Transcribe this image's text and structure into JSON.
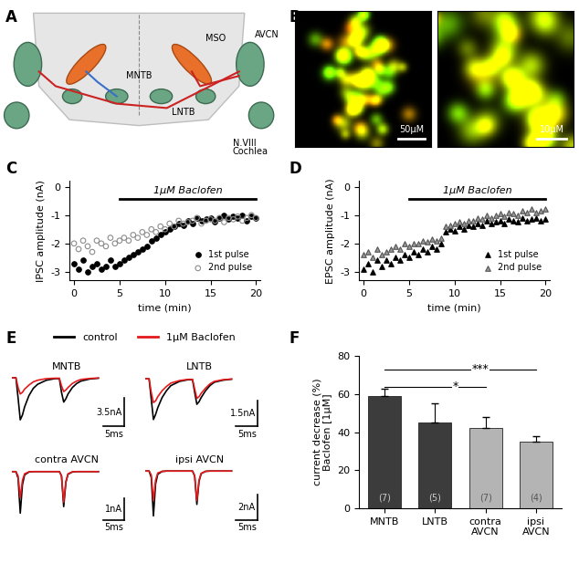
{
  "diagram": {
    "panel_label": "A",
    "labels": [
      "MNTB",
      "MSO",
      "LNTB",
      "AVCN",
      "N.VIII",
      "Cochlea"
    ]
  },
  "images": {
    "panel_label": "B",
    "scale_bars": [
      {
        "value": 50,
        "label": "50µM"
      },
      {
        "value": 10,
        "label": "10µM"
      }
    ]
  },
  "chart_data": [
    {
      "panel_label": "C",
      "type": "scatter",
      "ylabel": "IPSC amplitude (nA)",
      "xlabel": "time (min)",
      "xlim": [
        -0.5,
        20.5
      ],
      "xticks": [
        0,
        5,
        10,
        15,
        20
      ],
      "ylim": [
        -3.3,
        0.2
      ],
      "yticks": [
        -3,
        -2,
        -1,
        0
      ],
      "legend": "lower right",
      "drug_bar": {
        "label": "1µM Baclofen",
        "start": 5,
        "end": 20
      },
      "x": [
        0,
        0.5,
        1,
        1.5,
        2,
        2.5,
        3,
        3.5,
        4,
        4.5,
        5,
        5.5,
        6,
        6.5,
        7,
        7.5,
        8,
        8.5,
        9,
        9.5,
        10,
        10.5,
        11,
        11.5,
        12,
        12.5,
        13,
        13.5,
        14,
        14.5,
        15,
        15.5,
        16,
        16.5,
        17,
        17.5,
        18,
        18.5,
        19,
        19.5,
        20
      ],
      "series": [
        {
          "name": "1st pulse",
          "color": "#000000",
          "marker": "circle",
          "values": [
            -2.7,
            -2.9,
            -2.6,
            -3.0,
            -2.8,
            -2.7,
            -2.9,
            -2.8,
            -2.6,
            -2.8,
            -2.7,
            -2.6,
            -2.5,
            -2.4,
            -2.3,
            -2.2,
            -2.1,
            -1.9,
            -1.8,
            -1.7,
            -1.6,
            -1.5,
            -1.4,
            -1.3,
            -1.35,
            -1.2,
            -1.3,
            -1.1,
            -1.2,
            -1.15,
            -1.1,
            -1.25,
            -1.1,
            -1.0,
            -1.15,
            -1.05,
            -1.1,
            -1.0,
            -1.2,
            -1.05,
            -1.1
          ]
        },
        {
          "name": "2nd pulse",
          "color": "#8c8c8c",
          "marker": "open circle",
          "values": [
            -2.0,
            -2.2,
            -1.9,
            -2.1,
            -2.3,
            -1.9,
            -2.0,
            -2.1,
            -1.8,
            -2.0,
            -1.9,
            -1.8,
            -1.9,
            -1.7,
            -1.8,
            -1.6,
            -1.7,
            -1.5,
            -1.6,
            -1.4,
            -1.5,
            -1.3,
            -1.4,
            -1.2,
            -1.3,
            -1.25,
            -1.2,
            -1.1,
            -1.3,
            -1.2,
            -1.15,
            -1.2,
            -1.1,
            -1.25,
            -1.1,
            -1.15,
            -1.05,
            -1.2,
            -1.1,
            -1.0,
            -1.1
          ]
        }
      ]
    },
    {
      "panel_label": "D",
      "type": "scatter",
      "ylabel": "EPSC amplitude (nA)",
      "xlabel": "time (min)",
      "xlim": [
        -0.5,
        20.5
      ],
      "xticks": [
        0,
        5,
        10,
        15,
        20
      ],
      "ylim": [
        -3.3,
        0.2
      ],
      "yticks": [
        -3,
        -2,
        -1,
        0
      ],
      "legend": "lower right",
      "drug_bar": {
        "label": "1µM Baclofen",
        "start": 5,
        "end": 20
      },
      "x": [
        0,
        0.5,
        1,
        1.5,
        2,
        2.5,
        3,
        3.5,
        4,
        4.5,
        5,
        5.5,
        6,
        6.5,
        7,
        7.5,
        8,
        8.5,
        9,
        9.5,
        10,
        10.5,
        11,
        11.5,
        12,
        12.5,
        13,
        13.5,
        14,
        14.5,
        15,
        15.5,
        16,
        16.5,
        17,
        17.5,
        18,
        18.5,
        19,
        19.5,
        20
      ],
      "series": [
        {
          "name": "1st pulse",
          "color": "#000000",
          "marker": "triangle",
          "values": [
            -2.9,
            -2.7,
            -3.0,
            -2.6,
            -2.8,
            -2.6,
            -2.7,
            -2.5,
            -2.6,
            -2.4,
            -2.5,
            -2.3,
            -2.4,
            -2.2,
            -2.3,
            -2.1,
            -2.2,
            -2.0,
            -1.6,
            -1.5,
            -1.55,
            -1.4,
            -1.5,
            -1.35,
            -1.4,
            -1.3,
            -1.35,
            -1.2,
            -1.3,
            -1.25,
            -1.2,
            -1.3,
            -1.15,
            -1.2,
            -1.25,
            -1.1,
            -1.2,
            -1.15,
            -1.1,
            -1.2,
            -1.15
          ]
        },
        {
          "name": "2nd pulse",
          "color": "#9a9a9a",
          "marker": "triangle",
          "values": [
            -2.4,
            -2.3,
            -2.5,
            -2.2,
            -2.4,
            -2.3,
            -2.2,
            -2.1,
            -2.2,
            -2.0,
            -2.1,
            -2.0,
            -2.0,
            -1.9,
            -1.95,
            -1.85,
            -1.9,
            -1.8,
            -1.4,
            -1.35,
            -1.3,
            -1.25,
            -1.3,
            -1.2,
            -1.2,
            -1.1,
            -1.15,
            -1.0,
            -1.1,
            -1.0,
            -0.95,
            -1.05,
            -0.9,
            -0.95,
            -1.0,
            -0.85,
            -0.9,
            -0.8,
            -0.9,
            -0.85,
            -0.8
          ]
        }
      ]
    },
    {
      "panel_label": "E",
      "type": "line",
      "legend": "upper center",
      "tick_labels": false,
      "x": [
        0,
        1,
        1.5,
        2,
        2.5,
        3,
        4,
        5,
        6,
        8,
        10,
        11,
        11.5,
        12,
        12.5,
        13,
        14,
        15,
        16,
        18,
        20
      ],
      "xlim": [
        0,
        28
      ],
      "series": [
        {
          "name": "control",
          "color": "#000000"
        },
        {
          "name": "1µM Baclofen",
          "color": "#e41a1c"
        }
      ],
      "traces": [
        {
          "title": "MNTB",
          "ylim": [
            -6,
            0.5
          ],
          "scale_bar": {
            "y": {
              "value": 3.5,
              "label": "3.5nA"
            },
            "x": {
              "value": 5,
              "label": "5ms"
            }
          },
          "values": [
            [
              0,
              0,
              -2.5,
              -5.2,
              -4.6,
              -3.6,
              -2.2,
              -1.3,
              -0.8,
              -0.3,
              -0.1,
              -0.1,
              -1.8,
              -3.0,
              -2.6,
              -2.0,
              -1.2,
              -0.7,
              -0.4,
              -0.15,
              -0.05
            ],
            [
              0,
              0,
              -1.2,
              -2.0,
              -1.8,
              -1.4,
              -0.9,
              -0.5,
              -0.3,
              -0.1,
              -0.05,
              -0.05,
              -1.0,
              -1.7,
              -1.5,
              -1.2,
              -0.7,
              -0.4,
              -0.2,
              -0.08,
              -0.02
            ]
          ]
        },
        {
          "title": "LNTB",
          "ylim": [
            -2.8,
            0.3
          ],
          "scale_bar": {
            "y": {
              "value": 1.5,
              "label": "1.5nA"
            },
            "x": {
              "value": 5,
              "label": "5ms"
            }
          },
          "values": [
            [
              0,
              0,
              -1.2,
              -2.4,
              -2.1,
              -1.7,
              -1.1,
              -0.7,
              -0.4,
              -0.15,
              -0.05,
              -0.05,
              -0.8,
              -1.5,
              -1.35,
              -1.1,
              -0.7,
              -0.4,
              -0.2,
              -0.08,
              -0.02
            ],
            [
              0,
              0,
              -0.8,
              -1.4,
              -1.3,
              -1.05,
              -0.7,
              -0.45,
              -0.25,
              -0.1,
              -0.03,
              -0.03,
              -0.6,
              -1.15,
              -1.05,
              -0.85,
              -0.55,
              -0.3,
              -0.15,
              -0.05,
              -0.01
            ]
          ]
        },
        {
          "title": "contra AVCN",
          "ylim": [
            -2.2,
            0.2
          ],
          "scale_bar": {
            "y": {
              "value": 1,
              "label": "1nA"
            },
            "x": {
              "value": 5,
              "label": "5ms"
            }
          },
          "values": [
            [
              0,
              0,
              -0.3,
              -1.9,
              -0.6,
              -0.15,
              -0.02,
              0,
              0,
              0,
              0,
              0,
              -0.2,
              -1.6,
              -0.5,
              -0.12,
              -0.02,
              0,
              0,
              0,
              0
            ],
            [
              0,
              0,
              -0.2,
              -1.2,
              -0.4,
              -0.1,
              -0.01,
              0,
              0,
              0,
              0,
              0,
              -0.2,
              -1.4,
              -0.45,
              -0.1,
              -0.01,
              0,
              0,
              0,
              0
            ]
          ]
        },
        {
          "title": "ipsi AVCN",
          "ylim": [
            -3.8,
            0.3
          ],
          "scale_bar": {
            "y": {
              "value": 2,
              "label": "2nA"
            },
            "x": {
              "value": 5,
              "label": "5ms"
            }
          },
          "values": [
            [
              0,
              0,
              -0.5,
              -3.5,
              -1.0,
              -0.25,
              -0.03,
              0,
              0,
              0,
              0,
              0,
              -0.4,
              -2.6,
              -0.8,
              -0.2,
              -0.02,
              0,
              0,
              0,
              0
            ],
            [
              0,
              0,
              -0.3,
              -2.3,
              -0.7,
              -0.15,
              -0.02,
              0,
              0,
              0,
              0,
              0,
              -0.35,
              -2.3,
              -0.7,
              -0.18,
              -0.02,
              0,
              0,
              0,
              0
            ]
          ]
        }
      ]
    },
    {
      "panel_label": "F",
      "type": "bar",
      "ylabel": "current decrease (%)\nBaclofen [1µM]",
      "categories": [
        "MNTB",
        "LNTB",
        "contra\nAVCN",
        "ipsi\nAVCN"
      ],
      "values": [
        59,
        45,
        42,
        35
      ],
      "errors": [
        4,
        10,
        6,
        3
      ],
      "colors": [
        "#3c3c3c",
        "#3c3c3c",
        "#b4b4b4",
        "#b4b4b4"
      ],
      "n": [
        {
          "value": 7,
          "label": "(7)"
        },
        {
          "value": 5,
          "label": "(5)"
        },
        {
          "value": 7,
          "label": "(7)"
        },
        {
          "value": 4,
          "label": "(4)"
        }
      ],
      "ylim": [
        0,
        80
      ],
      "yticks": [
        0,
        20,
        40,
        60,
        80
      ],
      "significance": [
        {
          "between": [
            "MNTB",
            "contra\nAVCN"
          ],
          "label": "*"
        },
        {
          "between": [
            "MNTB",
            "ipsi\nAVCN"
          ],
          "label": "***"
        }
      ]
    }
  ]
}
